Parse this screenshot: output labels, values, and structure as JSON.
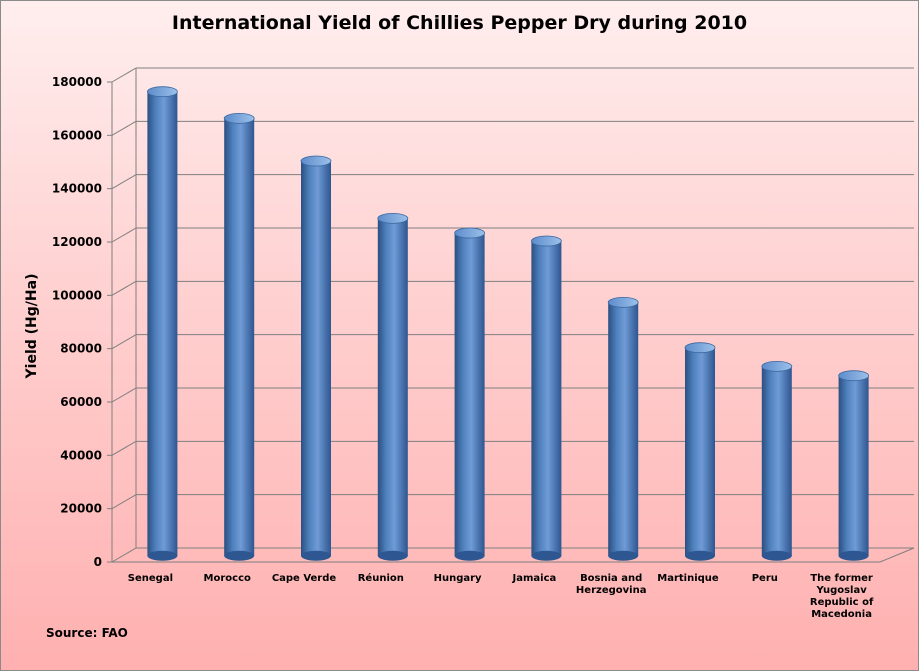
{
  "chart_data": {
    "type": "bar",
    "title": "International Yield of Chillies Pepper Dry during 2010",
    "xlabel": "",
    "ylabel": "Yield (Hg/Ha)",
    "source": "Source: FAO",
    "categories": [
      [
        "Senegal"
      ],
      [
        "Morocco"
      ],
      [
        "Cape Verde"
      ],
      [
        "Réunion"
      ],
      [
        "Hungary"
      ],
      [
        "Jamaica"
      ],
      [
        "Bosnia and",
        "Herzegovina"
      ],
      [
        "Martinique"
      ],
      [
        "Peru"
      ],
      [
        "The former",
        "Yugoslav",
        "Republic of",
        "Macedonia"
      ]
    ],
    "values": [
      174000,
      164000,
      148000,
      126500,
      121000,
      118000,
      95000,
      78000,
      71000,
      67500
    ],
    "ylim": [
      0,
      180000
    ],
    "yticks": [
      0,
      20000,
      40000,
      60000,
      80000,
      100000,
      120000,
      140000,
      160000,
      180000
    ],
    "grid": true,
    "colors": {
      "bar_main": "#4f81bd",
      "bar_dark": "#2a4f82",
      "bar_light": "#8fb4e3"
    }
  }
}
